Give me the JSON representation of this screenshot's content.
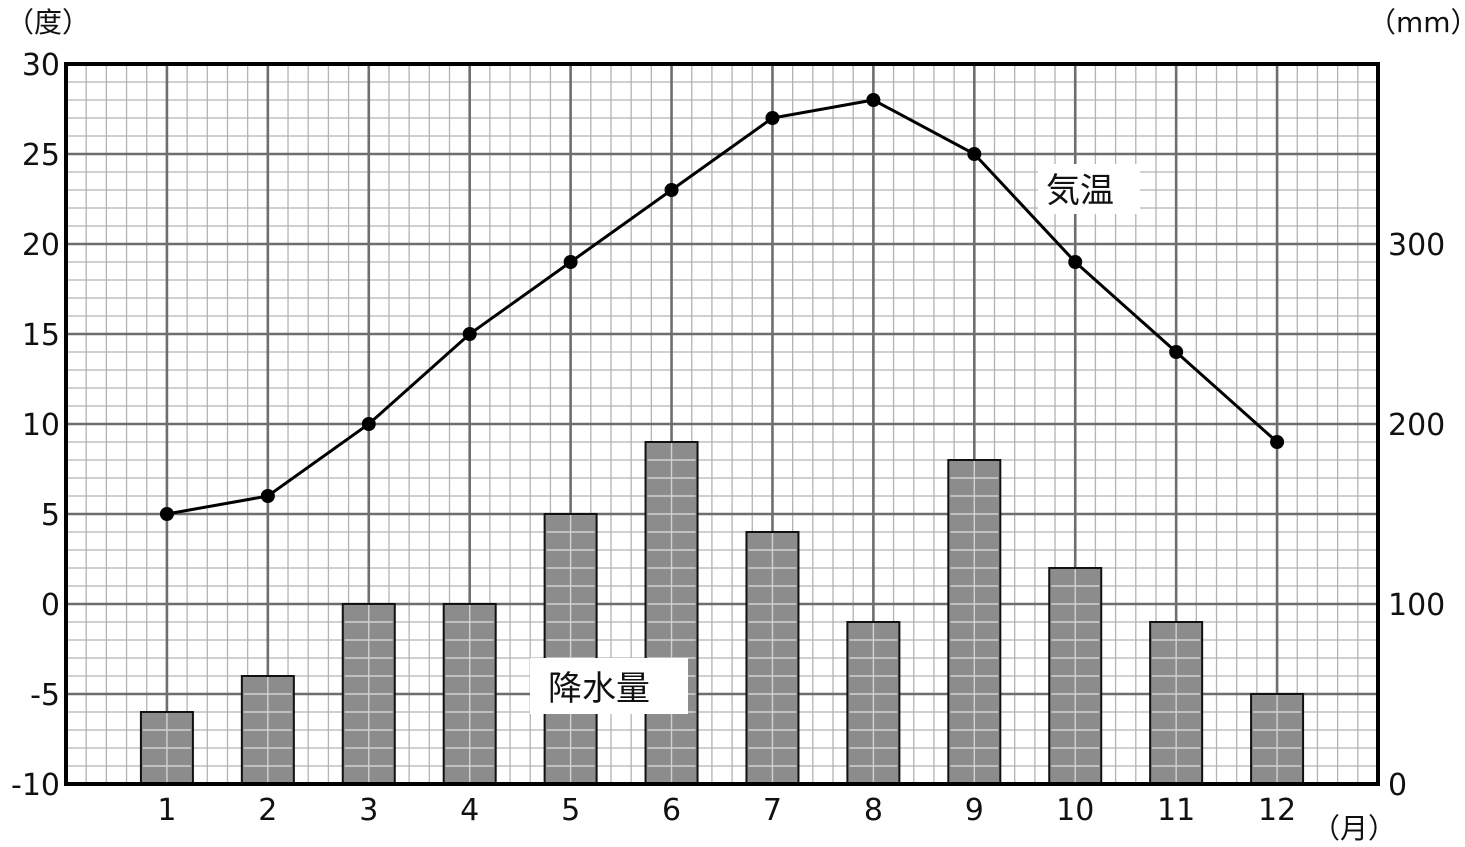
{
  "chart_data": {
    "type": "bar+line",
    "categories": [
      "1",
      "2",
      "3",
      "4",
      "5",
      "6",
      "7",
      "8",
      "9",
      "10",
      "11",
      "12"
    ],
    "x_unit": "（月）",
    "left_axis": {
      "unit": "（度）",
      "ticks": [
        "30",
        "25",
        "20",
        "15",
        "10",
        "5",
        "0",
        "-5",
        "-10"
      ],
      "ylim": [
        -10,
        30
      ]
    },
    "right_axis": {
      "unit": "（mm）",
      "ticks": [
        "300",
        "200",
        "100",
        "0"
      ],
      "ylim": [
        0,
        400
      ]
    },
    "series": [
      {
        "name": "気温",
        "type": "line",
        "axis": "left",
        "values": [
          5,
          6,
          10,
          15,
          19,
          23,
          27,
          28,
          25,
          19,
          14,
          9
        ]
      },
      {
        "name": "降水量",
        "type": "bar",
        "axis": "right",
        "values": [
          40,
          60,
          100,
          100,
          150,
          190,
          140,
          90,
          180,
          120,
          90,
          50
        ]
      }
    ],
    "grid": true,
    "colors": {
      "bar_fill": "#8c8c8c",
      "line": "#000000",
      "grid_major": "#6e6e6e",
      "grid_minor": "#b3b3b3"
    }
  }
}
